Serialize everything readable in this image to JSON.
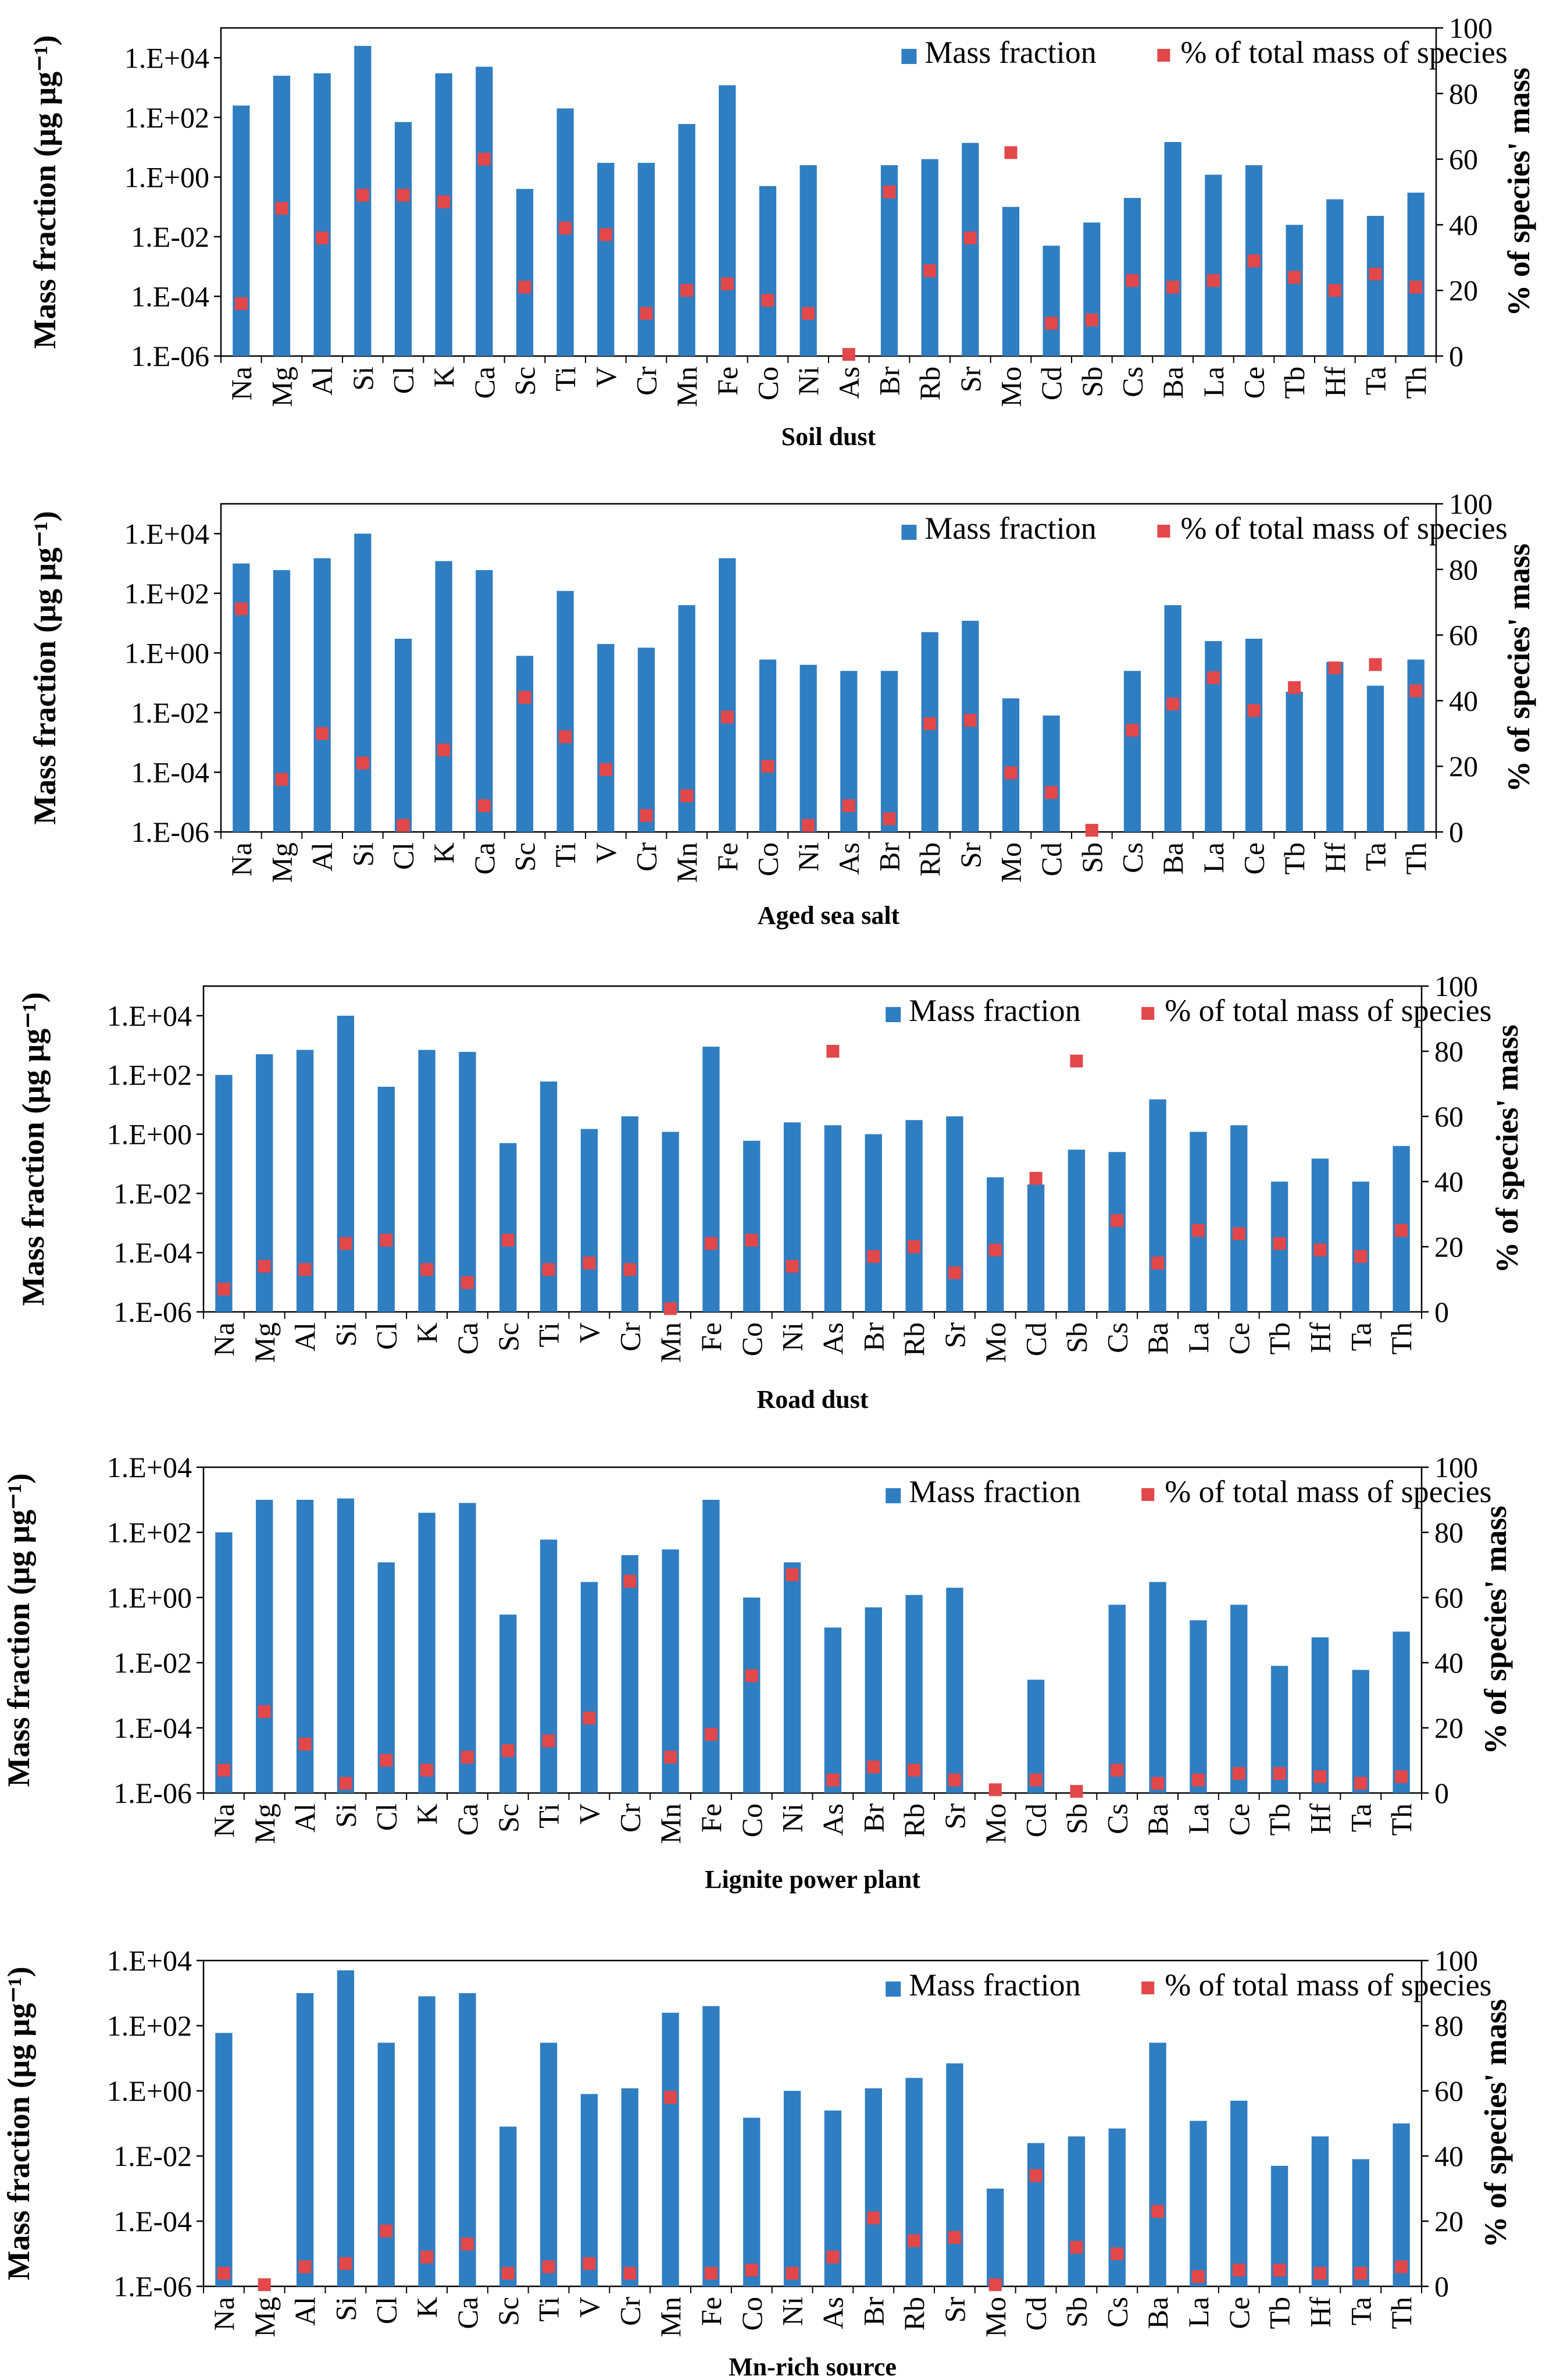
{
  "colors": {
    "bar": "#2f7ec2",
    "marker": "#e2474a",
    "axis": "#000000"
  },
  "chart_data": [
    {
      "type": "bar",
      "title": "Soil dust",
      "ylabel": "Mass fraction (μg μg⁻¹)",
      "y2label": "% of species' mass",
      "legend": [
        "Mass fraction",
        "% of total mass of species"
      ],
      "yscale": "log",
      "ylim": [
        1e-06,
        100000
      ],
      "yticks": [
        "1.E-06",
        "1.E-04",
        "1.E-02",
        "1.E+00",
        "1.E+02",
        "1.E+04"
      ],
      "y2lim": [
        0,
        100
      ],
      "y2ticks": [
        "0",
        "20",
        "40",
        "60",
        "80",
        "100"
      ],
      "categories": [
        "Na",
        "Mg",
        "Al",
        "Si",
        "Cl",
        "K",
        "Ca",
        "Sc",
        "Ti",
        "V",
        "Cr",
        "Mn",
        "Fe",
        "Co",
        "Ni",
        "As",
        "Br",
        "Rb",
        "Sr",
        "Mo",
        "Cd",
        "Sb",
        "Cs",
        "Ba",
        "La",
        "Ce",
        "Tb",
        "Hf",
        "Ta",
        "Th"
      ],
      "series": [
        {
          "name": "Mass fraction",
          "values": [
            250,
            2500,
            3000,
            25000,
            70,
            3000,
            5000,
            0.4,
            200,
            3,
            3,
            60,
            1200,
            0.5,
            2.5,
            null,
            2.5,
            4,
            14,
            0.1,
            0.005,
            0.03,
            0.2,
            15,
            1.2,
            2.5,
            0.025,
            0.18,
            0.05,
            0.3
          ]
        },
        {
          "name": "% of total mass of species",
          "values": [
            16,
            45,
            36,
            49,
            49,
            47,
            60,
            21,
            39,
            37,
            13,
            20,
            22,
            17,
            13,
            0.5,
            50,
            26,
            36,
            62,
            10,
            11,
            23,
            21,
            23,
            29,
            24,
            20,
            25,
            21
          ]
        }
      ]
    },
    {
      "type": "bar",
      "title": "Aged sea salt",
      "ylabel": "Mass fraction (μg μg⁻¹)",
      "y2label": "% of species' mass",
      "legend": [
        "Mass fraction",
        "% of total mass of species"
      ],
      "yscale": "log",
      "ylim": [
        1e-06,
        100000
      ],
      "yticks": [
        "1.E-06",
        "1.E-04",
        "1.E-02",
        "1.E+00",
        "1.E+02",
        "1.E+04"
      ],
      "y2lim": [
        0,
        100
      ],
      "y2ticks": [
        "0",
        "20",
        "40",
        "60",
        "80",
        "100"
      ],
      "categories": [
        "Na",
        "Mg",
        "Al",
        "Si",
        "Cl",
        "K",
        "Ca",
        "Sc",
        "Ti",
        "V",
        "Cr",
        "Mn",
        "Fe",
        "Co",
        "Ni",
        "As",
        "Br",
        "Rb",
        "Sr",
        "Mo",
        "Cd",
        "Sb",
        "Cs",
        "Ba",
        "La",
        "Ce",
        "Tb",
        "Hf",
        "Ta",
        "Th"
      ],
      "series": [
        {
          "name": "Mass fraction",
          "values": [
            1000,
            600,
            1500,
            10000,
            3,
            1200,
            600,
            0.8,
            120,
            2,
            1.5,
            40,
            1500,
            0.6,
            0.4,
            0.25,
            0.25,
            5,
            12,
            0.03,
            0.008,
            null,
            0.25,
            40,
            2.5,
            3,
            0.05,
            0.5,
            0.08,
            0.6
          ]
        },
        {
          "name": "% of total mass of species",
          "values": [
            68,
            16,
            30,
            21,
            2,
            25,
            8,
            41,
            29,
            19,
            5,
            11,
            35,
            20,
            2,
            8,
            4,
            33,
            34,
            18,
            12,
            0.5,
            31,
            39,
            47,
            37,
            44,
            50,
            51,
            43
          ]
        }
      ]
    },
    {
      "type": "bar",
      "title": "Road dust",
      "ylabel": "Mass fraction (μg μg⁻¹)",
      "y2label": "% of species' mass",
      "legend": [
        "Mass fraction",
        "% of total mass of species"
      ],
      "yscale": "log",
      "ylim": [
        1e-06,
        100000
      ],
      "yticks": [
        "1.E-06",
        "1.E-04",
        "1.E-02",
        "1.E+00",
        "1.E+02",
        "1.E+04"
      ],
      "y2lim": [
        0,
        100
      ],
      "y2ticks": [
        "0",
        "20",
        "40",
        "60",
        "80",
        "100"
      ],
      "categories": [
        "Na",
        "Mg",
        "Al",
        "Si",
        "Cl",
        "K",
        "Ca",
        "Sc",
        "Ti",
        "V",
        "Cr",
        "Mn",
        "Fe",
        "Co",
        "Ni",
        "As",
        "Br",
        "Rb",
        "Sr",
        "Mo",
        "Cd",
        "Sb",
        "Cs",
        "Ba",
        "La",
        "Ce",
        "Tb",
        "Hf",
        "Ta",
        "Th"
      ],
      "series": [
        {
          "name": "Mass fraction",
          "values": [
            100,
            500,
            700,
            10000,
            40,
            700,
            600,
            0.5,
            60,
            1.5,
            4,
            1.2,
            900,
            0.6,
            2.5,
            2,
            1,
            3,
            4,
            0.035,
            0.02,
            0.3,
            0.25,
            15,
            1.2,
            2,
            0.025,
            0.15,
            0.025,
            0.4
          ]
        },
        {
          "name": "% of total mass of species",
          "values": [
            7,
            14,
            13,
            21,
            22,
            13,
            9,
            22,
            13,
            15,
            13,
            1,
            21,
            22,
            14,
            80,
            17,
            20,
            12,
            19,
            41,
            77,
            28,
            15,
            25,
            24,
            21,
            19,
            17,
            25
          ]
        }
      ]
    },
    {
      "type": "bar",
      "title": "Lignite power plant",
      "ylabel": "Mass fraction (μg μg⁻¹)",
      "y2label": "% of species' mass",
      "legend": [
        "Mass fraction",
        "% of total mass of species"
      ],
      "yscale": "log",
      "ylim": [
        1e-06,
        10000
      ],
      "yticks": [
        "1.E-06",
        "1.E-04",
        "1.E-02",
        "1.E+00",
        "1.E+02",
        "1.E+04"
      ],
      "y2lim": [
        0,
        100
      ],
      "y2ticks": [
        "0",
        "20",
        "40",
        "60",
        "80",
        "100"
      ],
      "categories": [
        "Na",
        "Mg",
        "Al",
        "Si",
        "Cl",
        "K",
        "Ca",
        "Sc",
        "Ti",
        "V",
        "Cr",
        "Mn",
        "Fe",
        "Co",
        "Ni",
        "As",
        "Br",
        "Rb",
        "Sr",
        "Mo",
        "Cd",
        "Sb",
        "Cs",
        "Ba",
        "La",
        "Ce",
        "Tb",
        "Hf",
        "Ta",
        "Th"
      ],
      "series": [
        {
          "name": "Mass fraction",
          "values": [
            100,
            1000,
            1000,
            1100,
            12,
            400,
            800,
            0.3,
            60,
            3,
            20,
            30,
            1000,
            1,
            12,
            0.12,
            0.5,
            1.2,
            2,
            null,
            0.003,
            null,
            0.6,
            3,
            0.2,
            0.6,
            0.008,
            0.06,
            0.006,
            0.09
          ]
        },
        {
          "name": "% of total mass of species",
          "values": [
            7,
            25,
            15,
            3,
            10,
            7,
            11,
            13,
            16,
            23,
            65,
            11,
            18,
            36,
            67,
            4,
            8,
            7,
            4,
            1,
            4,
            0.5,
            7,
            3,
            4,
            6,
            6,
            5,
            3,
            5
          ]
        }
      ]
    },
    {
      "type": "bar",
      "title": "Mn-rich source",
      "ylabel": "Mass fraction (μg μg⁻¹)",
      "y2label": "% of species' mass",
      "legend": [
        "Mass fraction",
        "% of total mass of species"
      ],
      "yscale": "log",
      "ylim": [
        1e-06,
        10000
      ],
      "yticks": [
        "1.E-06",
        "1.E-04",
        "1.E-02",
        "1.E+00",
        "1.E+02",
        "1.E+04"
      ],
      "y2lim": [
        0,
        100
      ],
      "y2ticks": [
        "0",
        "20",
        "40",
        "60",
        "80",
        "100"
      ],
      "categories": [
        "Na",
        "Mg",
        "Al",
        "Si",
        "Cl",
        "K",
        "Ca",
        "Sc",
        "Ti",
        "V",
        "Cr",
        "Mn",
        "Fe",
        "Co",
        "Ni",
        "As",
        "Br",
        "Rb",
        "Sr",
        "Mo",
        "Cd",
        "Sb",
        "Cs",
        "Ba",
        "La",
        "Ce",
        "Tb",
        "Hf",
        "Ta",
        "Th"
      ],
      "series": [
        {
          "name": "Mass fraction",
          "values": [
            60,
            null,
            1000,
            5000,
            30,
            800,
            1000,
            0.08,
            30,
            0.8,
            1.2,
            250,
            400,
            0.15,
            1,
            0.25,
            1.2,
            2.5,
            7,
            0.001,
            0.025,
            0.04,
            0.07,
            30,
            0.12,
            0.5,
            0.005,
            0.04,
            0.008,
            0.1
          ]
        },
        {
          "name": "% of total mass of species",
          "values": [
            4,
            0.5,
            6,
            7,
            17,
            9,
            13,
            4,
            6,
            7,
            4,
            58,
            4,
            5,
            4,
            9,
            21,
            14,
            15,
            0.5,
            34,
            12,
            10,
            23,
            3,
            5,
            5,
            4,
            4,
            6
          ]
        }
      ]
    }
  ]
}
